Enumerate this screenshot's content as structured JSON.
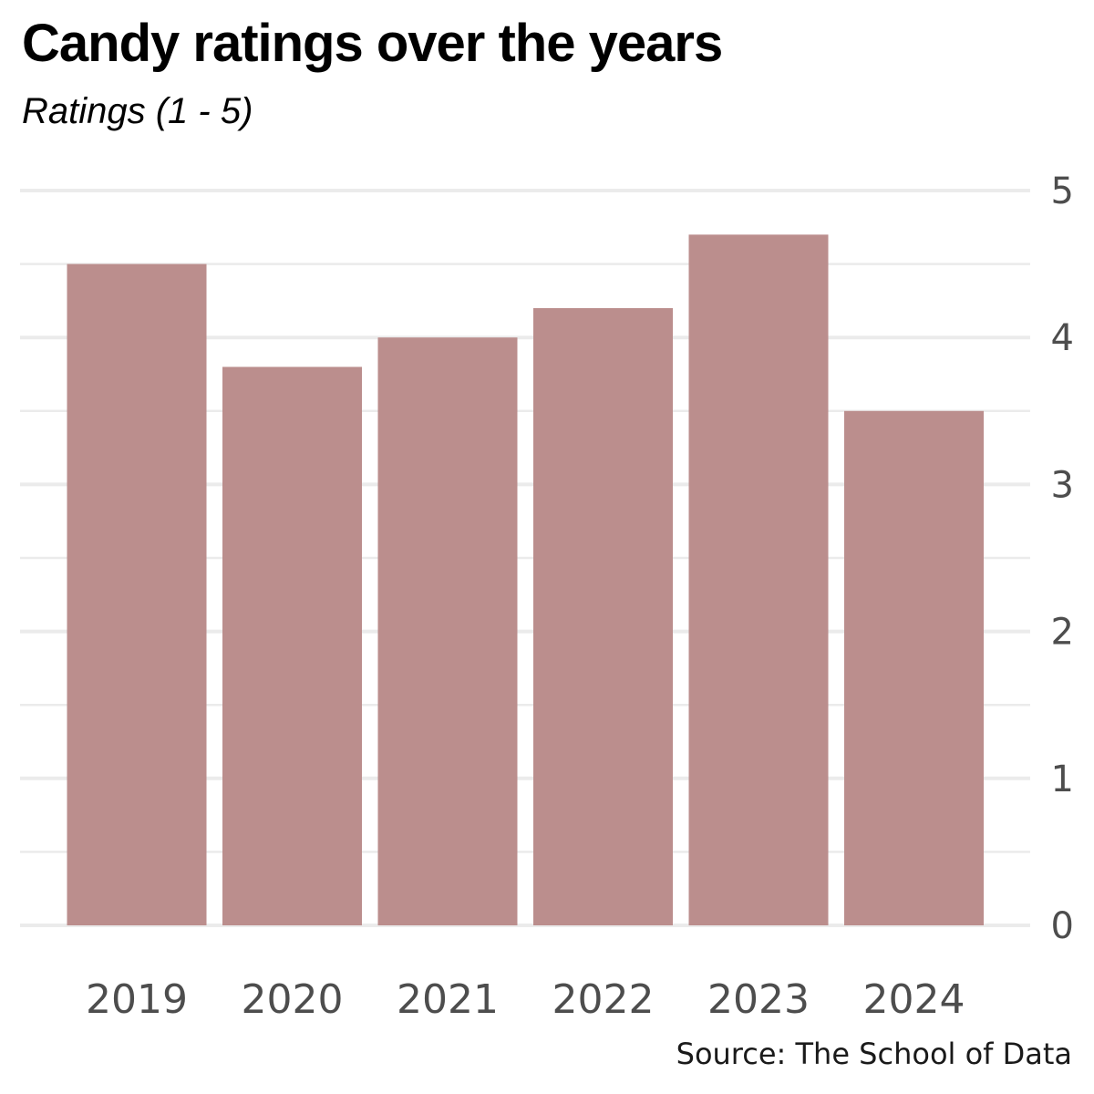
{
  "chart_data": {
    "type": "bar",
    "title": "Candy ratings over the years",
    "subtitle": "Ratings (1 - 5)",
    "categories": [
      "2019",
      "2020",
      "2021",
      "2022",
      "2023",
      "2024"
    ],
    "values": [
      4.5,
      3.8,
      4.0,
      4.2,
      4.7,
      3.5
    ],
    "ylim": [
      0,
      5
    ],
    "yticks": [
      "0",
      "1",
      "2",
      "3",
      "4",
      "5"
    ],
    "y_axis_side": "right",
    "grid": true,
    "bar_color": "#bb8e8d",
    "grid_color": "#ebebeb",
    "source": "Source: The School of Data"
  }
}
